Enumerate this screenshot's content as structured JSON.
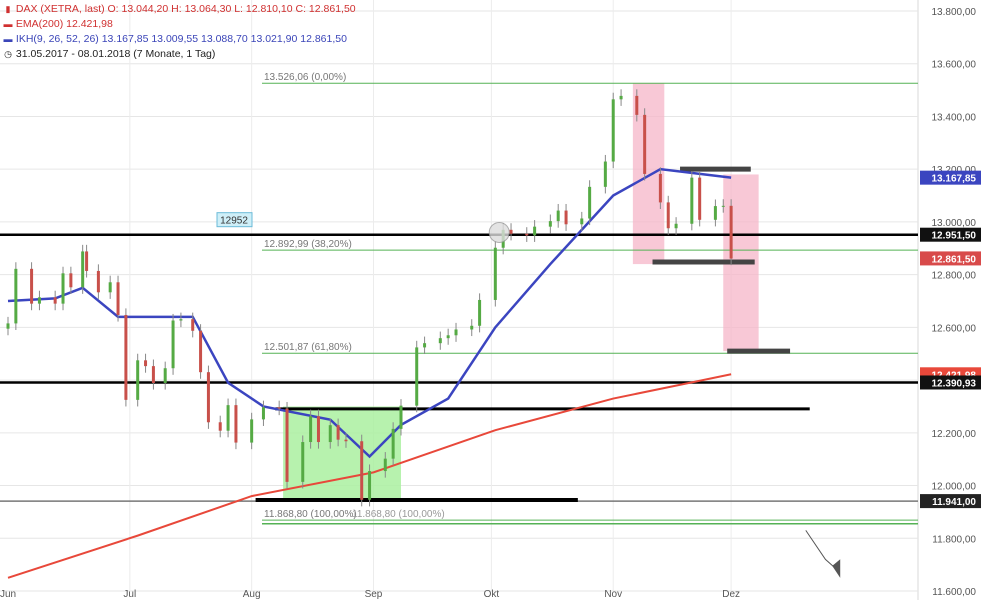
{
  "legend": {
    "instrument": "DAX (XETRA, last)  O: 13.044,20  H: 13.064,30  L: 12.810,10  C: 12.861,50",
    "ema": "EMA(200)  12.421,98",
    "ikh": "IKH(9, 26, 52, 26)  13.167,85  13.009,55  13.088,70  13.021,90  12.861,50",
    "range": "31.05.2017 - 08.01.2018  (7 Monate, 1 Tag)"
  },
  "colors": {
    "up": "#55aa44",
    "down": "#c8504a",
    "ema": "#e8483a",
    "ikh": "#3b45c0",
    "fib": "#55b255",
    "support": "#000000",
    "box_green": "#aaf0a0",
    "box_pink": "#f5b6c8"
  },
  "chart_data": {
    "type": "line",
    "title": "DAX (XETRA, last)",
    "y_ticks": [
      "11.600,00",
      "11.800,00",
      "12.000,00",
      "12.200,00",
      "12.400,00",
      "12.600,00",
      "12.800,00",
      "13.000,00",
      "13.200,00",
      "13.400,00",
      "13.600,00",
      "13.800,00"
    ],
    "x_labels": [
      "Jun",
      "Jul",
      "Aug",
      "Sep",
      "Okt",
      "Nov",
      "Dez"
    ],
    "ylim": [
      11600,
      13800
    ],
    "grid": true,
    "price_approx": [
      [
        "2017-05-31",
        12615
      ],
      [
        "2017-06-02",
        12822
      ],
      [
        "2017-06-06",
        12690
      ],
      [
        "2017-06-08",
        12714
      ],
      [
        "2017-06-12",
        12690
      ],
      [
        "2017-06-14",
        12805
      ],
      [
        "2017-06-16",
        12752
      ],
      [
        "2017-06-19",
        12888
      ],
      [
        "2017-06-20",
        12814
      ],
      [
        "2017-06-23",
        12733
      ],
      [
        "2017-06-26",
        12771
      ],
      [
        "2017-06-28",
        12647
      ],
      [
        "2017-06-30",
        12325
      ],
      [
        "2017-07-03",
        12475
      ],
      [
        "2017-07-05",
        12453
      ],
      [
        "2017-07-07",
        12389
      ],
      [
        "2017-07-10",
        12445
      ],
      [
        "2017-07-12",
        12626
      ],
      [
        "2017-07-14",
        12631
      ],
      [
        "2017-07-17",
        12587
      ],
      [
        "2017-07-19",
        12430
      ],
      [
        "2017-07-21",
        12240
      ],
      [
        "2017-07-24",
        12208
      ],
      [
        "2017-07-26",
        12305
      ],
      [
        "2017-07-28",
        12163
      ],
      [
        "2017-08-01",
        12251
      ],
      [
        "2017-08-04",
        12297
      ],
      [
        "2017-08-08",
        12292
      ],
      [
        "2017-08-10",
        12014
      ],
      [
        "2017-08-14",
        12165
      ],
      [
        "2017-08-16",
        12263
      ],
      [
        "2017-08-18",
        12165
      ],
      [
        "2017-08-21",
        12229
      ],
      [
        "2017-08-23",
        12174
      ],
      [
        "2017-08-25",
        12168
      ],
      [
        "2017-08-29",
        11946
      ],
      [
        "2017-08-31",
        12055
      ],
      [
        "2017-09-04",
        12102
      ],
      [
        "2017-09-06",
        12215
      ],
      [
        "2017-09-08",
        12303
      ],
      [
        "2017-09-12",
        12524
      ],
      [
        "2017-09-14",
        12540
      ],
      [
        "2017-09-18",
        12559
      ],
      [
        "2017-09-20",
        12570
      ],
      [
        "2017-09-22",
        12592
      ],
      [
        "2017-09-26",
        12606
      ],
      [
        "2017-09-28",
        12704
      ],
      [
        "2017-10-02",
        12902
      ],
      [
        "2017-10-04",
        12970
      ],
      [
        "2017-10-06",
        12955
      ],
      [
        "2017-10-10",
        12949
      ],
      [
        "2017-10-12",
        12982
      ],
      [
        "2017-10-16",
        13003
      ],
      [
        "2017-10-18",
        13043
      ],
      [
        "2017-10-20",
        12991
      ],
      [
        "2017-10-24",
        13013
      ],
      [
        "2017-10-26",
        13133
      ],
      [
        "2017-10-30",
        13229
      ],
      [
        "2017-11-01",
        13465
      ],
      [
        "2017-11-03",
        13478
      ],
      [
        "2017-11-07",
        13406
      ],
      [
        "2017-11-09",
        13182
      ],
      [
        "2017-11-13",
        13074
      ],
      [
        "2017-11-15",
        12976
      ],
      [
        "2017-11-17",
        12993
      ],
      [
        "2017-11-21",
        13168
      ],
      [
        "2017-11-23",
        13008
      ],
      [
        "2017-11-27",
        13060
      ],
      [
        "2017-11-29",
        13061
      ],
      [
        "2017-12-01",
        12861
      ]
    ],
    "ema200_approx": [
      [
        "2017-05-31",
        11650
      ],
      [
        "2017-07-03",
        11810
      ],
      [
        "2017-08-01",
        11960
      ],
      [
        "2017-09-01",
        12050
      ],
      [
        "2017-10-02",
        12210
      ],
      [
        "2017-11-01",
        12330
      ],
      [
        "2017-12-01",
        12422
      ]
    ],
    "ikh_approx": [
      [
        "2017-05-31",
        12700
      ],
      [
        "2017-06-12",
        12710
      ],
      [
        "2017-06-19",
        12750
      ],
      [
        "2017-06-28",
        12640
      ],
      [
        "2017-07-17",
        12640
      ],
      [
        "2017-07-26",
        12390
      ],
      [
        "2017-08-04",
        12300
      ],
      [
        "2017-08-21",
        12250
      ],
      [
        "2017-08-31",
        12110
      ],
      [
        "2017-09-08",
        12230
      ],
      [
        "2017-09-20",
        12330
      ],
      [
        "2017-10-02",
        12600
      ],
      [
        "2017-10-16",
        12840
      ],
      [
        "2017-11-01",
        13100
      ],
      [
        "2017-11-13",
        13200
      ],
      [
        "2017-12-01",
        13168
      ]
    ],
    "fib_levels": [
      {
        "value": 13526.06,
        "label": "13.526,06 (0,00%)"
      },
      {
        "value": 12892.99,
        "label": "12.892,99 (38,20%)"
      },
      {
        "value": 12501.87,
        "label": "12.501,87 (61,80%)"
      },
      {
        "value": 11868.8,
        "label": "11.868,80 (100,00%)"
      }
    ],
    "overlap_label": "11.868,80 (100,00%)",
    "note_box": "12952",
    "horizontal_lines": [
      {
        "value": 12951.5,
        "label": "12.951,50"
      },
      {
        "value": 12390.93,
        "label": "12.390,93"
      },
      {
        "value": 11941.0,
        "label": "11.941,00"
      }
    ],
    "right_tags": [
      {
        "value": 13167.85,
        "label": "13.167,85"
      },
      {
        "value": 12861.5,
        "label": "12.861,50"
      },
      {
        "value": 12421.98,
        "label": "12.421,98"
      }
    ]
  }
}
